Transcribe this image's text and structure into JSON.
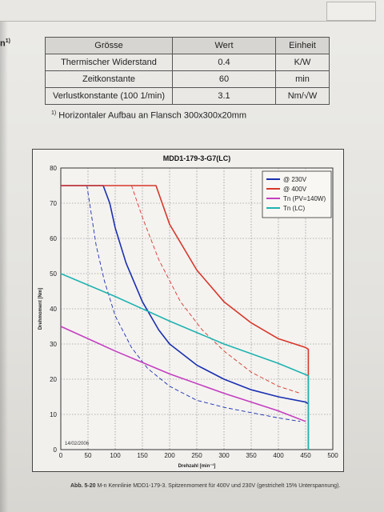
{
  "header": {
    "footnote_ref": "n",
    "footnote_sup": "1)"
  },
  "table": {
    "headers": [
      "Grösse",
      "Wert",
      "Einheit"
    ],
    "rows": [
      {
        "name": "Thermischer Widerstand",
        "value": "0.4",
        "unit": "K/W"
      },
      {
        "name": "Zeitkonstante",
        "value": "60",
        "unit": "min"
      },
      {
        "name": "Verlustkonstante (100 1/min)",
        "value": "3.1",
        "unit": "Nm/√W"
      }
    ]
  },
  "footnote": {
    "marker": "1)",
    "text": "Horizontaler Aufbau an Flansch 300x300x20mm"
  },
  "chart_data": {
    "type": "line",
    "title": "MDD1-179-3-G7(LC)",
    "xlabel": "Drehzahl [min⁻¹]",
    "ylabel": "Drehmoment [Nm]",
    "xlim": [
      0,
      500
    ],
    "ylim": [
      0,
      80
    ],
    "xticks": [
      0,
      50,
      100,
      150,
      200,
      250,
      300,
      350,
      400,
      450,
      500
    ],
    "yticks": [
      0,
      10,
      20,
      30,
      40,
      50,
      60,
      70,
      80
    ],
    "grid": true,
    "legend_position": "top-right",
    "date_stamp": "14/02/2006",
    "series": [
      {
        "name": "@ 230V",
        "color": "#1a2fb0",
        "style": "solid",
        "x": [
          0,
          78,
          90,
          100,
          120,
          150,
          180,
          200,
          250,
          300,
          350,
          400,
          450,
          455
        ],
        "y": [
          75,
          75,
          70,
          63,
          53,
          42,
          34,
          30,
          24,
          20,
          17,
          15,
          13.5,
          13
        ]
      },
      {
        "name": "@ 400V",
        "color": "#d8372a",
        "style": "solid",
        "x": [
          0,
          175,
          200,
          250,
          300,
          350,
          400,
          450,
          455,
          455
        ],
        "y": [
          75,
          75,
          64,
          51,
          42,
          36,
          31.5,
          29,
          28.5,
          0
        ]
      },
      {
        "name": "Tn (PV=140W)",
        "color": "#c43ec0",
        "style": "solid",
        "x": [
          0,
          100,
          200,
          300,
          400,
          450
        ],
        "y": [
          35,
          28,
          21.5,
          16,
          11,
          8
        ]
      },
      {
        "name": "Tn (LC)",
        "color": "#1fb3b0",
        "style": "solid",
        "x": [
          0,
          100,
          200,
          300,
          400,
          455,
          455
        ],
        "y": [
          50,
          43.5,
          36.5,
          30,
          24.5,
          21,
          0
        ]
      },
      {
        "name": "",
        "color": "#1a2fb0",
        "style": "dashed",
        "x": [
          0,
          48,
          55,
          65,
          80,
          100,
          130,
          160,
          200,
          250,
          300,
          350,
          400,
          440
        ],
        "y": [
          75,
          75,
          68,
          58,
          48,
          38,
          29,
          23,
          18,
          14,
          12,
          10.5,
          9,
          8
        ]
      },
      {
        "name": "",
        "color": "#d8372a",
        "style": "dashed",
        "x": [
          0,
          130,
          150,
          180,
          220,
          260,
          300,
          350,
          400,
          440
        ],
        "y": [
          75,
          75,
          66,
          54,
          42,
          34,
          28,
          22,
          18,
          16
        ]
      }
    ]
  },
  "caption": {
    "label": "Abb. 5-20",
    "text": "M-n Kennlinie MDD1-179-3. Spitzenmoment für 400V und 230V (gestrichelt 15% Unterspannung)."
  }
}
